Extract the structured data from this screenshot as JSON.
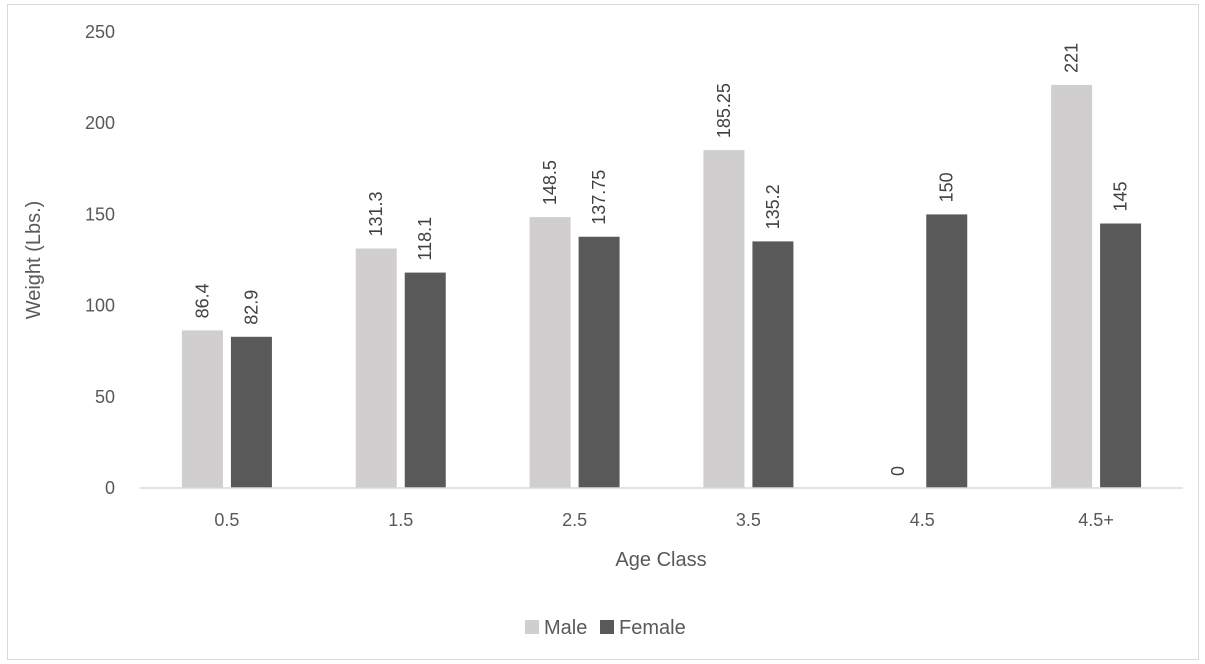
{
  "chart_data": {
    "type": "bar",
    "categories": [
      "0.5",
      "1.5",
      "2.5",
      "3.5",
      "4.5",
      "4.5+"
    ],
    "series": [
      {
        "name": "Male",
        "color": "#d0cece",
        "values": [
          86.4,
          131.3,
          148.5,
          185.25,
          0,
          221
        ],
        "labels": [
          "86.4",
          "131.3",
          "148.5",
          "185.25",
          "0",
          "221"
        ]
      },
      {
        "name": "Female",
        "color": "#595959",
        "values": [
          82.9,
          118.1,
          137.75,
          135.2,
          150,
          145
        ],
        "labels": [
          "82.9",
          "118.1",
          "137.75",
          "135.2",
          "150",
          "145"
        ]
      }
    ],
    "xlabel": "Age Class",
    "ylabel": "Weight (Lbs.)",
    "ylim": [
      0,
      250
    ],
    "yticks": [
      "0",
      "50",
      "100",
      "150",
      "200",
      "250"
    ],
    "grid": false,
    "legend": "bottom",
    "data_labels_rotated": true,
    "axis_color": "#d9d9d9"
  }
}
